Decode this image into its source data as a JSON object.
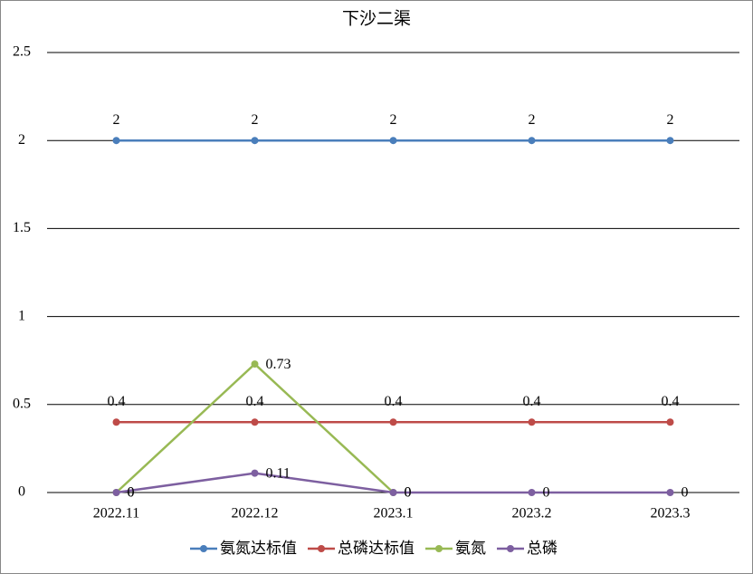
{
  "chart_data": {
    "type": "line",
    "title": "下沙二渠",
    "categories": [
      "2022.11",
      "2022.12",
      "2023.1",
      "2023.2",
      "2023.3"
    ],
    "series": [
      {
        "name": "氨氮达标值",
        "color": "#4a7ebb",
        "values": [
          2,
          2,
          2,
          2,
          2
        ]
      },
      {
        "name": "总磷达标值",
        "color": "#be4b48",
        "values": [
          0.4,
          0.4,
          0.4,
          0.4,
          0.4
        ]
      },
      {
        "name": "氨氮",
        "color": "#98b954",
        "values": [
          0,
          0.73,
          0,
          null,
          null
        ]
      },
      {
        "name": "总磷",
        "color": "#7d5fa0",
        "values": [
          0,
          0.11,
          0,
          0,
          0
        ]
      }
    ],
    "ylim": [
      0,
      2.5
    ],
    "yticks": [
      0,
      0.5,
      1,
      1.5,
      2,
      2.5
    ],
    "grid": true,
    "legend": "bottom"
  }
}
